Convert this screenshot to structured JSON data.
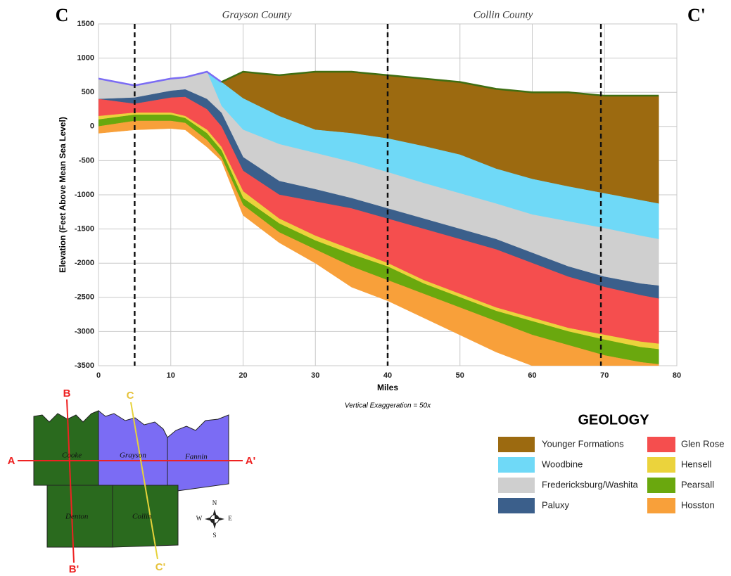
{
  "chart_data": {
    "type": "cross-section",
    "title_left": "C",
    "title_right": "C'",
    "annotations": [
      "Grayson County",
      "Collin County"
    ],
    "xlabel": "Miles",
    "ylabel": "Elevation (Feet Above Mean Sea Level)",
    "subtitle": "Vertical Exaggeration = 50x",
    "xlim": [
      0,
      80
    ],
    "xticks": [
      0,
      10,
      20,
      30,
      40,
      50,
      60,
      70,
      80
    ],
    "ylim": [
      -3500,
      1500
    ],
    "yticks": [
      -3500,
      -3000,
      -2500,
      -2000,
      -1500,
      -1000,
      -500,
      0,
      500,
      1000,
      1500
    ],
    "grid": true,
    "section_lines_x": [
      5,
      40,
      69.5
    ],
    "x": [
      0,
      5,
      10,
      12,
      15,
      17,
      20,
      25,
      30,
      35,
      40,
      45,
      50,
      55,
      60,
      65,
      70,
      75,
      77.5
    ],
    "legend_title": "GEOLOGY",
    "series": [
      {
        "name": "Younger Formations",
        "color": "#9c6a10",
        "values": [
          700,
          600,
          700,
          720,
          800,
          650,
          800,
          750,
          800,
          800,
          750,
          700,
          650,
          550,
          500,
          500,
          450,
          450,
          450
        ]
      },
      {
        "name": "Woodbine",
        "color": "#6fd9f7",
        "values": [
          700,
          600,
          700,
          720,
          800,
          650,
          410,
          150,
          -50,
          -100,
          -177,
          -290,
          -414,
          -620,
          -770,
          -880,
          -980,
          -1080,
          -1130
        ]
      },
      {
        "name": "Fredericksburg/Washita",
        "color": "#cfcfcf",
        "values": [
          700,
          600,
          700,
          720,
          800,
          300,
          -50,
          -260,
          -390,
          -520,
          -670,
          -830,
          -980,
          -1130,
          -1290,
          -1390,
          -1490,
          -1600,
          -1650
        ]
      },
      {
        "name": "Paluxy",
        "color": "#3b5f8b",
        "values": [
          400,
          420,
          520,
          540,
          400,
          200,
          -450,
          -800,
          -920,
          -1050,
          -1200,
          -1350,
          -1500,
          -1650,
          -1850,
          -2050,
          -2200,
          -2300,
          -2330
        ]
      },
      {
        "name": "Glen Rose",
        "color": "#f54e4e",
        "values": [
          400,
          330,
          420,
          430,
          250,
          0,
          -650,
          -1000,
          -1100,
          -1200,
          -1350,
          -1500,
          -1650,
          -1800,
          -2000,
          -2200,
          -2350,
          -2470,
          -2520
        ]
      },
      {
        "name": "Hensell",
        "color": "#ebd33c",
        "values": [
          150,
          200,
          200,
          150,
          -50,
          -300,
          -950,
          -1350,
          -1600,
          -1800,
          -2000,
          -2250,
          -2450,
          -2650,
          -2800,
          -2950,
          -3050,
          -3150,
          -3180
        ]
      },
      {
        "name": "Pearsall",
        "color": "#6aa80e",
        "values": [
          100,
          170,
          170,
          120,
          -100,
          -350,
          -1050,
          -1420,
          -1670,
          -1870,
          -2050,
          -2300,
          -2500,
          -2700,
          -2850,
          -3000,
          -3120,
          -3230,
          -3260
        ]
      },
      {
        "name": "Hosston",
        "color": "#f8a03a",
        "values": [
          0,
          80,
          80,
          50,
          -200,
          -450,
          -1150,
          -1550,
          -1800,
          -2050,
          -2250,
          -2450,
          -2650,
          -2850,
          -3050,
          -3200,
          -3350,
          -3450,
          -3480
        ]
      }
    ],
    "base": [
      -100,
      -50,
      -30,
      -50,
      -300,
      -500,
      -1300,
      -1700,
      -2000,
      -2350,
      -2550,
      -2800,
      -3050,
      -3300,
      -3500,
      -3700,
      -3800,
      -3900,
      -3950
    ]
  },
  "map": {
    "counties": [
      "Cooke",
      "Grayson",
      "Fannin",
      "Denton",
      "Collin"
    ],
    "lines": [
      "A",
      "A'",
      "B",
      "B'",
      "C",
      "C'"
    ],
    "compass": [
      "N",
      "E",
      "S",
      "W"
    ]
  }
}
